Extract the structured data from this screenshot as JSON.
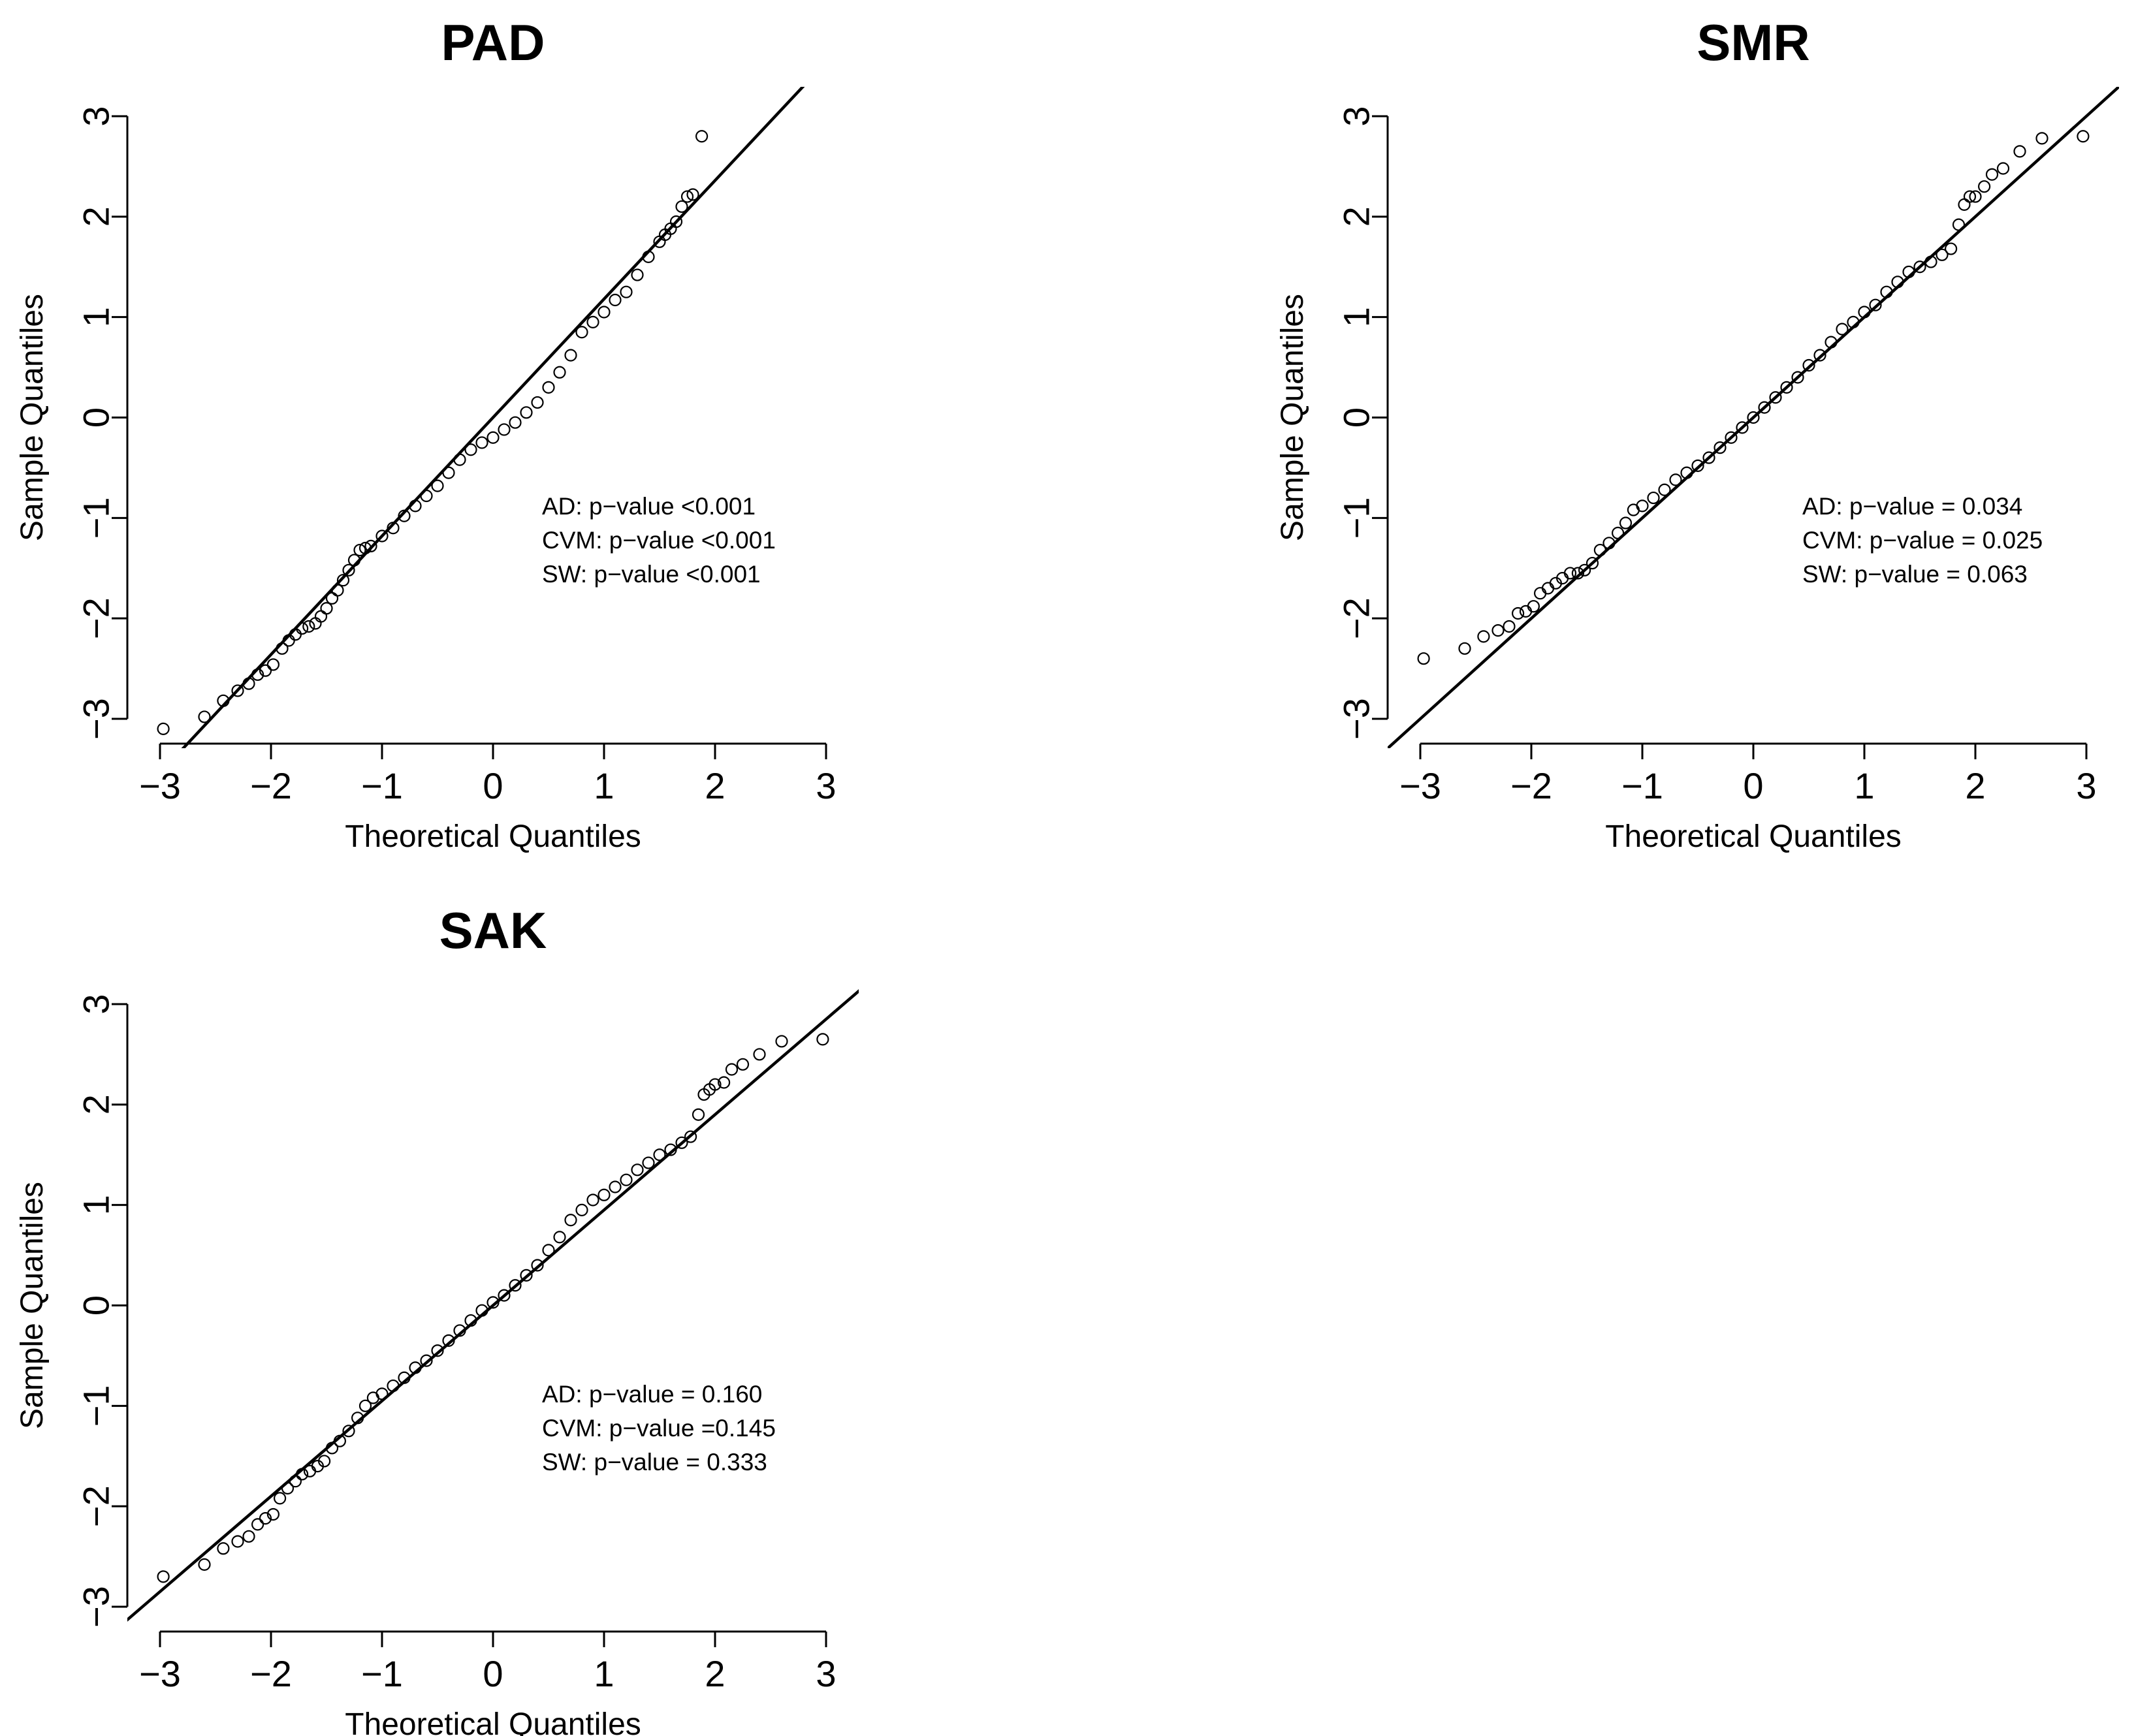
{
  "chart_data": [
    {
      "type": "scatter",
      "title": "PAD",
      "xlabel": "Theoretical Quantiles",
      "ylabel": "Sample Quantiles",
      "xlim": [
        -3,
        3
      ],
      "ylim": [
        -3,
        3
      ],
      "xticks": [
        -3,
        -2,
        -1,
        0,
        1,
        2,
        3
      ],
      "yticks": [
        -3,
        -2,
        -1,
        0,
        1,
        2,
        3
      ],
      "reference_line": {
        "slope": 1.18,
        "intercept": 0.0
      },
      "annotations": [
        "AD: p−value <0.001",
        "CVM: p−value <0.001",
        "SW: p−value <0.001"
      ],
      "x": [
        -2.97,
        -2.6,
        -2.43,
        -2.3,
        -2.2,
        -2.12,
        -2.05,
        -1.98,
        -1.9,
        -1.84,
        -1.78,
        -1.72,
        -1.66,
        -1.6,
        -1.55,
        -1.5,
        -1.45,
        -1.4,
        -1.35,
        -1.3,
        -1.25,
        -1.2,
        -1.15,
        -1.1,
        -1.0,
        -0.9,
        -0.8,
        -0.7,
        -0.6,
        -0.5,
        -0.4,
        -0.3,
        -0.2,
        -0.1,
        0.0,
        0.1,
        0.2,
        0.3,
        0.4,
        0.5,
        0.6,
        0.7,
        0.8,
        0.9,
        1.0,
        1.1,
        1.2,
        1.3,
        1.4,
        1.5,
        1.55,
        1.6,
        1.65,
        1.7,
        1.75,
        1.8,
        1.88
      ],
      "y": [
        -3.1,
        -2.98,
        -2.82,
        -2.72,
        -2.65,
        -2.56,
        -2.52,
        -2.46,
        -2.3,
        -2.22,
        -2.16,
        -2.1,
        -2.08,
        -2.05,
        -1.98,
        -1.9,
        -1.8,
        -1.72,
        -1.62,
        -1.52,
        -1.42,
        -1.32,
        -1.3,
        -1.28,
        -1.18,
        -1.1,
        -0.98,
        -0.88,
        -0.78,
        -0.68,
        -0.55,
        -0.42,
        -0.32,
        -0.25,
        -0.2,
        -0.12,
        -0.05,
        0.05,
        0.15,
        0.3,
        0.45,
        0.62,
        0.85,
        0.95,
        1.05,
        1.17,
        1.25,
        1.42,
        1.6,
        1.75,
        1.82,
        1.88,
        1.95,
        2.1,
        2.2,
        2.22,
        2.8
      ]
    },
    {
      "type": "scatter",
      "title": "SMR",
      "xlabel": "Theoretical Quantiles",
      "ylabel": "Sample Quantiles",
      "xlim": [
        -3,
        3
      ],
      "ylim": [
        -3,
        3
      ],
      "xticks": [
        -3,
        -2,
        -1,
        0,
        1,
        2,
        3
      ],
      "yticks": [
        -3,
        -2,
        -1,
        0,
        1,
        2,
        3
      ],
      "reference_line": {
        "slope": 1.0,
        "intercept": 0.0
      },
      "annotations": [
        "AD: p−value =  0.034",
        "CVM:  p−value = 0.025",
        "SW:  p−value = 0.063"
      ],
      "x": [
        -2.97,
        -2.6,
        -2.43,
        -2.3,
        -2.2,
        -2.12,
        -2.05,
        -1.98,
        -1.92,
        -1.85,
        -1.78,
        -1.72,
        -1.65,
        -1.58,
        -1.52,
        -1.45,
        -1.38,
        -1.3,
        -1.22,
        -1.15,
        -1.08,
        -1.0,
        -0.9,
        -0.8,
        -0.7,
        -0.6,
        -0.5,
        -0.4,
        -0.3,
        -0.2,
        -0.1,
        0.0,
        0.1,
        0.2,
        0.3,
        0.4,
        0.5,
        0.6,
        0.7,
        0.8,
        0.9,
        1.0,
        1.1,
        1.2,
        1.3,
        1.4,
        1.5,
        1.6,
        1.7,
        1.78,
        1.85,
        1.9,
        1.95,
        2.0,
        2.08,
        2.15,
        2.25,
        2.4,
        2.6,
        2.97
      ],
      "y": [
        -2.4,
        -2.3,
        -2.18,
        -2.12,
        -2.08,
        -1.95,
        -1.93,
        -1.88,
        -1.75,
        -1.7,
        -1.65,
        -1.6,
        -1.55,
        -1.55,
        -1.52,
        -1.45,
        -1.32,
        -1.25,
        -1.15,
        -1.05,
        -0.92,
        -0.88,
        -0.8,
        -0.72,
        -0.62,
        -0.55,
        -0.48,
        -0.4,
        -0.3,
        -0.2,
        -0.1,
        0.0,
        0.1,
        0.2,
        0.3,
        0.4,
        0.52,
        0.62,
        0.75,
        0.88,
        0.95,
        1.05,
        1.12,
        1.25,
        1.35,
        1.45,
        1.5,
        1.55,
        1.62,
        1.68,
        1.92,
        2.12,
        2.2,
        2.2,
        2.3,
        2.42,
        2.48,
        2.65,
        2.78,
        2.8
      ]
    },
    {
      "type": "scatter",
      "title": "SAK",
      "xlabel": "Theoretical Quantiles",
      "ylabel": "Sample Quantiles",
      "xlim": [
        -3,
        3
      ],
      "ylim": [
        -3,
        3
      ],
      "xticks": [
        -3,
        -2,
        -1,
        0,
        1,
        2,
        3
      ],
      "yticks": [
        -3,
        -2,
        -1,
        0,
        1,
        2,
        3
      ],
      "reference_line": {
        "slope": 0.95,
        "intercept": 0.0
      },
      "annotations": [
        "AD:  p−value = 0.160",
        "CVM:  p−value =0.145",
        "SW: p−value = 0.333"
      ],
      "x": [
        -2.97,
        -2.6,
        -2.43,
        -2.3,
        -2.2,
        -2.12,
        -2.05,
        -1.98,
        -1.92,
        -1.85,
        -1.78,
        -1.72,
        -1.65,
        -1.58,
        -1.52,
        -1.45,
        -1.38,
        -1.3,
        -1.22,
        -1.15,
        -1.08,
        -1.0,
        -0.9,
        -0.8,
        -0.7,
        -0.6,
        -0.5,
        -0.4,
        -0.3,
        -0.2,
        -0.1,
        0.0,
        0.1,
        0.2,
        0.3,
        0.4,
        0.5,
        0.6,
        0.7,
        0.8,
        0.9,
        1.0,
        1.1,
        1.2,
        1.3,
        1.4,
        1.5,
        1.6,
        1.7,
        1.78,
        1.85,
        1.9,
        1.95,
        2.0,
        2.08,
        2.15,
        2.25,
        2.4,
        2.6,
        2.97
      ],
      "y": [
        -2.7,
        -2.58,
        -2.42,
        -2.35,
        -2.3,
        -2.18,
        -2.12,
        -2.08,
        -1.92,
        -1.82,
        -1.75,
        -1.68,
        -1.65,
        -1.6,
        -1.55,
        -1.42,
        -1.35,
        -1.25,
        -1.12,
        -1.0,
        -0.92,
        -0.88,
        -0.8,
        -0.72,
        -0.62,
        -0.55,
        -0.45,
        -0.35,
        -0.25,
        -0.15,
        -0.05,
        0.03,
        0.1,
        0.2,
        0.3,
        0.4,
        0.55,
        0.68,
        0.85,
        0.95,
        1.05,
        1.1,
        1.18,
        1.25,
        1.35,
        1.42,
        1.5,
        1.55,
        1.62,
        1.68,
        1.9,
        2.1,
        2.15,
        2.2,
        2.22,
        2.35,
        2.4,
        2.5,
        2.63,
        2.65
      ]
    }
  ]
}
